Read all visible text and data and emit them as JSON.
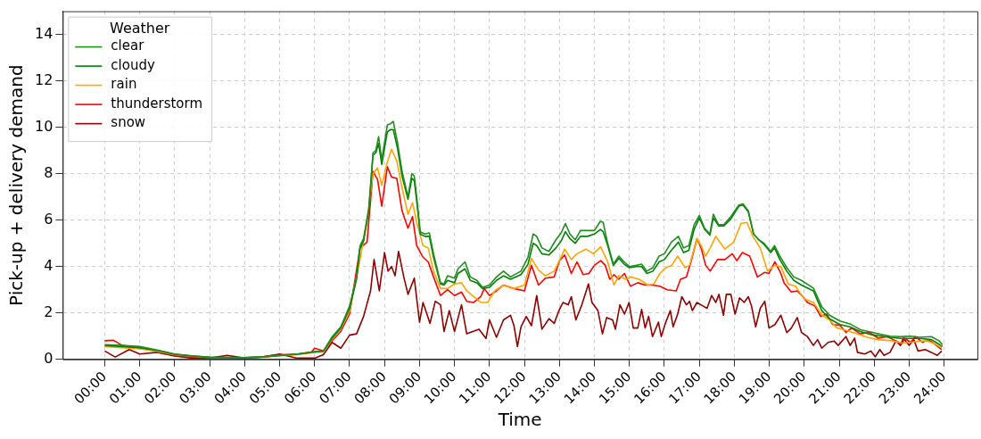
{
  "chart_data": {
    "type": "line",
    "xlabel": "Time",
    "ylabel": "Pick-up + delivery demand",
    "legend_title": "Weather",
    "legend": "top left",
    "grid": true,
    "xlim": [
      -1.2,
      24.95
    ],
    "ylim": [
      0,
      15
    ],
    "xticks": [
      {
        "value": 0,
        "label": "00:00"
      },
      {
        "value": 1,
        "label": "01:00"
      },
      {
        "value": 2,
        "label": "02:00"
      },
      {
        "value": 3,
        "label": "03:00"
      },
      {
        "value": 4,
        "label": "04:00"
      },
      {
        "value": 5,
        "label": "05:00"
      },
      {
        "value": 6,
        "label": "06:00"
      },
      {
        "value": 7,
        "label": "07:00"
      },
      {
        "value": 8,
        "label": "08:00"
      },
      {
        "value": 9,
        "label": "09:00"
      },
      {
        "value": 10,
        "label": "10:00"
      },
      {
        "value": 11,
        "label": "11:00"
      },
      {
        "value": 12,
        "label": "12:00"
      },
      {
        "value": 13,
        "label": "13:00"
      },
      {
        "value": 14,
        "label": "14:00"
      },
      {
        "value": 15,
        "label": "15:00"
      },
      {
        "value": 16,
        "label": "16:00"
      },
      {
        "value": 17,
        "label": "17:00"
      },
      {
        "value": 18,
        "label": "18:00"
      },
      {
        "value": 19,
        "label": "19:00"
      },
      {
        "value": 20,
        "label": "20:00"
      },
      {
        "value": 21,
        "label": "21:00"
      },
      {
        "value": 22,
        "label": "22:00"
      },
      {
        "value": 23,
        "label": "23:00"
      },
      {
        "value": 24,
        "label": "24:00"
      }
    ],
    "yticks": [
      0,
      2,
      4,
      6,
      8,
      10,
      12,
      14
    ],
    "series": [
      {
        "name": "clear",
        "color": "#228b22",
        "x": [
          0,
          0.5,
          1,
          1.5,
          2,
          2.5,
          3,
          3.5,
          4,
          4.5,
          5,
          5.5,
          6,
          6.25,
          6.5,
          6.75,
          7,
          7.2,
          7.3,
          7.4,
          7.55,
          7.67,
          7.75,
          7.83,
          7.92,
          8.08,
          8.17,
          8.25,
          8.37,
          8.5,
          8.67,
          8.78,
          8.85,
          8.92,
          9.02,
          9.15,
          9.28,
          9.4,
          9.6,
          9.7,
          9.8,
          10,
          10.1,
          10.3,
          10.45,
          10.64,
          10.8,
          11,
          11.2,
          11.4,
          11.6,
          11.9,
          12.1,
          12.25,
          12.35,
          12.5,
          12.7,
          12.9,
          13.05,
          13.17,
          13.3,
          13.45,
          13.6,
          13.8,
          14,
          14.17,
          14.25,
          14.37,
          14.54,
          14.7,
          14.85,
          15,
          15.2,
          15.35,
          15.5,
          15.67,
          15.85,
          16,
          16.2,
          16.4,
          16.55,
          16.7,
          16.85,
          17,
          17.15,
          17.3,
          17.4,
          17.55,
          17.7,
          17.9,
          18.13,
          18.25,
          18.4,
          18.55,
          18.7,
          18.85,
          19.04,
          19.15,
          19.3,
          19.5,
          19.7,
          19.92,
          20.26,
          20.5,
          20.72,
          21.02,
          21.3,
          21.6,
          21.95,
          22.2,
          22.45,
          22.75,
          23.04,
          23.3,
          23.63,
          23.85,
          23.95
        ],
        "values": [
          0.63,
          0.6,
          0.55,
          0.4,
          0.23,
          0.15,
          0.09,
          0.08,
          0.07,
          0.1,
          0.17,
          0.23,
          0.33,
          0.36,
          0.97,
          1.4,
          2.3,
          3.55,
          4.9,
          5.2,
          6.5,
          8.9,
          9.0,
          9.6,
          8.6,
          10.1,
          10.15,
          10.25,
          9.35,
          8.1,
          7.0,
          8.0,
          7.9,
          7.0,
          5.5,
          5.4,
          5.45,
          4.55,
          3.3,
          3.25,
          3.6,
          3.5,
          3.9,
          4.2,
          3.55,
          3.4,
          3.1,
          3.2,
          3.55,
          3.8,
          3.55,
          3.8,
          4.4,
          5.4,
          5.3,
          4.8,
          4.65,
          5.15,
          5.45,
          5.85,
          5.4,
          5.15,
          5.55,
          5.55,
          5.55,
          5.95,
          5.9,
          5.05,
          4.1,
          4.45,
          4.2,
          4.0,
          4.05,
          4.1,
          3.8,
          3.95,
          4.45,
          4.55,
          5.05,
          5.3,
          4.8,
          4.9,
          5.8,
          6.2,
          5.65,
          5.4,
          6.25,
          5.8,
          5.8,
          6.15,
          6.65,
          6.7,
          6.4,
          5.4,
          5.15,
          5.0,
          4.65,
          4.9,
          4.45,
          3.95,
          3.55,
          3.4,
          3.07,
          2.27,
          1.9,
          1.65,
          1.53,
          1.28,
          1.16,
          1.07,
          1.0,
          0.98,
          1.0,
          0.95,
          0.98,
          0.8,
          0.63
        ]
      },
      {
        "name": "cloudy",
        "color": "#008000",
        "x": [
          0,
          0.5,
          1,
          1.5,
          2,
          2.5,
          3,
          3.5,
          4,
          4.5,
          5,
          5.5,
          6,
          6.25,
          6.5,
          6.75,
          7,
          7.2,
          7.3,
          7.4,
          7.55,
          7.67,
          7.75,
          7.83,
          7.92,
          8.08,
          8.17,
          8.25,
          8.37,
          8.5,
          8.67,
          8.78,
          8.85,
          8.92,
          9.02,
          9.15,
          9.28,
          9.4,
          9.6,
          9.7,
          9.8,
          10,
          10.1,
          10.3,
          10.45,
          10.64,
          10.8,
          11,
          11.2,
          11.4,
          11.6,
          11.9,
          12.1,
          12.25,
          12.35,
          12.5,
          12.7,
          12.9,
          13.05,
          13.17,
          13.3,
          13.45,
          13.6,
          13.8,
          14,
          14.17,
          14.25,
          14.37,
          14.54,
          14.7,
          14.85,
          15,
          15.2,
          15.35,
          15.5,
          15.67,
          15.85,
          16,
          16.2,
          16.4,
          16.55,
          16.7,
          16.85,
          17,
          17.15,
          17.3,
          17.4,
          17.55,
          17.7,
          17.9,
          18.13,
          18.25,
          18.4,
          18.55,
          18.7,
          18.85,
          19.04,
          19.15,
          19.3,
          19.5,
          19.7,
          19.92,
          20.26,
          20.5,
          20.72,
          21.02,
          21.3,
          21.6,
          21.95,
          22.2,
          22.45,
          22.75,
          23.04,
          23.3,
          23.63,
          23.85,
          23.95
        ],
        "values": [
          0.6,
          0.55,
          0.5,
          0.38,
          0.22,
          0.14,
          0.09,
          0.08,
          0.07,
          0.1,
          0.16,
          0.22,
          0.32,
          0.35,
          0.9,
          1.35,
          2.2,
          3.45,
          4.8,
          5.1,
          6.4,
          8.8,
          8.9,
          9.3,
          8.4,
          9.8,
          9.9,
          9.9,
          9.1,
          7.9,
          6.9,
          7.8,
          7.7,
          6.8,
          5.4,
          5.3,
          5.3,
          4.4,
          3.25,
          3.2,
          3.4,
          3.3,
          3.7,
          3.9,
          3.4,
          3.3,
          3.05,
          3.1,
          3.4,
          3.6,
          3.45,
          3.65,
          4.1,
          5.0,
          4.9,
          4.55,
          4.5,
          4.8,
          5.1,
          5.5,
          5.2,
          5.0,
          5.3,
          5.3,
          5.4,
          5.6,
          5.5,
          4.95,
          4.05,
          4.35,
          4.1,
          3.95,
          4.0,
          4.0,
          3.7,
          3.8,
          4.2,
          4.3,
          4.7,
          5.05,
          4.6,
          4.7,
          5.6,
          6.1,
          5.6,
          5.35,
          6.1,
          5.75,
          5.75,
          6.05,
          6.6,
          6.65,
          6.35,
          5.4,
          5.15,
          4.95,
          4.6,
          4.8,
          4.3,
          3.8,
          3.4,
          3.2,
          2.95,
          2.1,
          1.75,
          1.5,
          1.4,
          1.2,
          1.05,
          1.0,
          0.95,
          0.9,
          0.9,
          0.9,
          0.85,
          0.65,
          0.55
        ]
      },
      {
        "name": "rain",
        "color": "#ffa500",
        "x": [
          0,
          0.5,
          1,
          1.5,
          2,
          2.5,
          3,
          3.5,
          4,
          4.5,
          5,
          5.5,
          6,
          6.25,
          6.5,
          6.75,
          7,
          7.3,
          7.5,
          7.67,
          7.8,
          7.92,
          8.08,
          8.2,
          8.35,
          8.5,
          8.67,
          8.8,
          8.92,
          9.1,
          9.25,
          9.4,
          9.6,
          9.8,
          10,
          10.2,
          10.35,
          10.55,
          10.75,
          10.95,
          11.15,
          11.4,
          11.7,
          12,
          12.2,
          12.4,
          12.6,
          12.85,
          13,
          13.15,
          13.34,
          13.5,
          13.76,
          13.97,
          14.18,
          14.38,
          14.56,
          14.69,
          14.9,
          15.03,
          15.28,
          15.53,
          15.7,
          15.87,
          16.04,
          16.21,
          16.38,
          16.59,
          16.72,
          16.93,
          17.05,
          17.18,
          17.31,
          17.47,
          17.73,
          17.98,
          18.19,
          18.36,
          18.53,
          18.74,
          18.95,
          19.16,
          19.33,
          19.54,
          19.75,
          20,
          20.26,
          20.51,
          20.72,
          20.93,
          21.2,
          21.5,
          21.8,
          22.1,
          22.5,
          22.8,
          23.1,
          23.5,
          23.75,
          23.93
        ],
        "values": [
          0.55,
          0.5,
          0.45,
          0.35,
          0.2,
          0.13,
          0.08,
          0.07,
          0.06,
          0.09,
          0.15,
          0.2,
          0.3,
          0.33,
          0.85,
          1.3,
          2.1,
          4.3,
          6.0,
          8.0,
          8.25,
          7.5,
          8.5,
          9.05,
          8.55,
          7.4,
          6.25,
          6.75,
          5.9,
          4.9,
          4.8,
          3.8,
          3.05,
          3.05,
          3.25,
          3.3,
          2.95,
          2.7,
          2.45,
          2.45,
          2.95,
          3.2,
          3.05,
          3.2,
          4.35,
          3.85,
          3.6,
          3.8,
          4.25,
          4.75,
          4.3,
          4.55,
          4.75,
          4.55,
          4.85,
          4.2,
          3.2,
          3.6,
          3.45,
          3.55,
          3.45,
          3.2,
          3.25,
          3.7,
          3.95,
          4.05,
          4.45,
          3.95,
          4.05,
          5.2,
          4.9,
          4.45,
          4.8,
          5.3,
          4.75,
          5.05,
          5.85,
          5.9,
          5.3,
          4.8,
          3.8,
          4.05,
          4.0,
          3.25,
          3.15,
          2.6,
          2.45,
          1.9,
          1.7,
          1.35,
          1.25,
          1.1,
          0.95,
          0.85,
          0.8,
          0.7,
          0.75,
          0.8,
          0.65,
          0.5
        ]
      },
      {
        "name": "thunderstorm",
        "color": "#ff0000",
        "x": [
          0,
          0.25,
          0.5,
          1,
          1.5,
          2,
          2.5,
          3,
          3.5,
          4,
          4.5,
          5,
          5.5,
          5.9,
          6,
          6.25,
          6.5,
          6.75,
          7,
          7.3,
          7.5,
          7.67,
          7.8,
          7.92,
          8.08,
          8.2,
          8.35,
          8.5,
          8.67,
          8.8,
          8.92,
          9.1,
          9.25,
          9.4,
          9.6,
          9.8,
          10,
          10.2,
          10.35,
          10.55,
          10.75,
          10.85,
          11,
          11.2,
          11.4,
          11.7,
          12,
          12.2,
          12.4,
          12.6,
          12.85,
          13,
          13.15,
          13.34,
          13.5,
          13.68,
          13.84,
          14,
          14.18,
          14.31,
          14.44,
          14.56,
          14.69,
          14.86,
          15.03,
          15.24,
          15.45,
          15.66,
          15.87,
          16.08,
          16.34,
          16.46,
          16.63,
          16.76,
          16.93,
          17.05,
          17.18,
          17.31,
          17.52,
          17.73,
          17.94,
          18.07,
          18.23,
          18.44,
          18.66,
          18.87,
          18.99,
          19.16,
          19.33,
          19.42,
          19.63,
          19.8,
          19.96,
          20.09,
          20.3,
          20.47,
          20.64,
          20.81,
          21.02,
          21.19,
          21.35,
          21.6,
          21.86,
          22.11,
          22.37,
          22.62,
          22.79,
          22.87,
          23.04,
          23.17,
          23.38,
          23.55,
          23.72,
          23.93
        ],
        "values": [
          0.8,
          0.82,
          0.6,
          0.48,
          0.36,
          0.17,
          0.1,
          0.07,
          0.06,
          0.07,
          0.1,
          0.2,
          0.22,
          0.3,
          0.48,
          0.36,
          0.8,
          1.2,
          1.95,
          4.8,
          5.05,
          8.1,
          7.75,
          6.6,
          8.3,
          7.85,
          7.8,
          6.4,
          5.65,
          6.15,
          4.9,
          4.4,
          4.2,
          3.55,
          2.75,
          3.0,
          2.75,
          2.9,
          2.5,
          2.45,
          2.7,
          3.05,
          2.75,
          2.95,
          3.2,
          3.05,
          2.95,
          4.05,
          3.2,
          3.5,
          3.55,
          4.25,
          4.5,
          3.7,
          4.2,
          3.65,
          3.7,
          4.05,
          4.25,
          4.05,
          3.45,
          3.65,
          3.45,
          3.7,
          3.15,
          3.3,
          3.2,
          3.2,
          3.15,
          3.0,
          2.95,
          3.45,
          3.55,
          4.2,
          5.2,
          4.8,
          4.05,
          3.8,
          4.3,
          4.3,
          4.55,
          4.25,
          4.6,
          4.45,
          3.55,
          3.75,
          3.7,
          4.2,
          3.7,
          3.3,
          2.9,
          2.95,
          2.7,
          2.45,
          2.3,
          1.85,
          1.95,
          1.5,
          1.47,
          1.16,
          1.35,
          1.1,
          1.16,
          0.91,
          0.98,
          0.79,
          0.67,
          0.91,
          0.73,
          0.98,
          0.73,
          0.85,
          0.67,
          0.42
        ]
      },
      {
        "name": "snow",
        "color": "#8b0000",
        "x": [
          0,
          0.3,
          0.7,
          1,
          1.5,
          2,
          2.5,
          3,
          3.5,
          4,
          4.5,
          5,
          5.5,
          6,
          6.25,
          6.5,
          6.75,
          7,
          7.2,
          7.4,
          7.6,
          7.7,
          7.85,
          8,
          8.1,
          8.2,
          8.3,
          8.4,
          8.55,
          8.67,
          8.85,
          9,
          9.1,
          9.3,
          9.45,
          9.6,
          9.7,
          9.85,
          10,
          10.2,
          10.35,
          10.7,
          10.9,
          11,
          11.2,
          11.4,
          11.6,
          11.7,
          11.8,
          11.9,
          12.05,
          12.2,
          12.35,
          12.5,
          12.7,
          12.85,
          13,
          13.1,
          13.25,
          13.34,
          13.47,
          13.64,
          13.83,
          13.93,
          14.1,
          14.23,
          14.35,
          14.52,
          14.6,
          14.73,
          14.86,
          14.99,
          15.11,
          15.24,
          15.35,
          15.45,
          15.55,
          15.66,
          15.83,
          15.91,
          16.04,
          16.17,
          16.25,
          16.38,
          16.5,
          16.63,
          16.72,
          16.8,
          16.93,
          17.1,
          17.22,
          17.35,
          17.47,
          17.56,
          17.69,
          17.77,
          17.9,
          18.02,
          18.15,
          18.28,
          18.4,
          18.49,
          18.61,
          18.74,
          18.87,
          18.99,
          19.16,
          19.33,
          19.5,
          19.63,
          19.8,
          19.92,
          20.09,
          20.26,
          20.38,
          20.5,
          20.68,
          20.85,
          20.97,
          21.19,
          21.31,
          21.44,
          21.52,
          21.73,
          21.9,
          22.03,
          22.16,
          22.28,
          22.45,
          22.62,
          22.75,
          22.83,
          23.0,
          23.13,
          23.25,
          23.46,
          23.63,
          23.8,
          23.93
        ],
        "values": [
          0.36,
          0.1,
          0.42,
          0.23,
          0.3,
          0.14,
          0.05,
          0.05,
          0.17,
          0.05,
          0.1,
          0.23,
          0.05,
          0.05,
          0.2,
          0.73,
          0.48,
          1.04,
          1.1,
          1.85,
          2.95,
          4.3,
          2.95,
          4.6,
          3.8,
          4.0,
          3.6,
          4.65,
          3.55,
          2.8,
          3.5,
          1.6,
          2.45,
          1.55,
          2.5,
          2.35,
          1.2,
          2.1,
          1.2,
          2.35,
          1.1,
          1.3,
          0.9,
          1.7,
          0.95,
          1.7,
          1.9,
          1.45,
          0.55,
          1.4,
          1.85,
          1.45,
          2.75,
          1.3,
          1.75,
          1.55,
          2.15,
          2.45,
          2.35,
          2.7,
          1.7,
          2.35,
          3.25,
          2.45,
          2.1,
          1.1,
          1.8,
          1.7,
          1.3,
          2.35,
          1.95,
          2.45,
          1.35,
          1.35,
          2.15,
          1.35,
          1.85,
          0.98,
          1.6,
          0.98,
          1.6,
          2.1,
          1.4,
          1.95,
          2.7,
          2.35,
          2.5,
          2.1,
          2.45,
          2.3,
          2.2,
          2.75,
          2.45,
          2.8,
          1.9,
          2.8,
          2.8,
          1.95,
          2.65,
          2.45,
          2.7,
          2.3,
          1.4,
          2.2,
          2.5,
          1.35,
          1.5,
          1.9,
          1.15,
          1.35,
          1.8,
          1.16,
          0.98,
          0.6,
          0.85,
          0.48,
          0.73,
          0.79,
          0.6,
          0.98,
          0.6,
          0.91,
          0.3,
          0.23,
          0.36,
          0.11,
          0.42,
          0.17,
          0.3,
          0.79,
          0.6,
          0.91,
          0.6,
          0.85,
          0.36,
          0.42,
          0.3,
          0.17,
          0.36
        ]
      }
    ]
  }
}
